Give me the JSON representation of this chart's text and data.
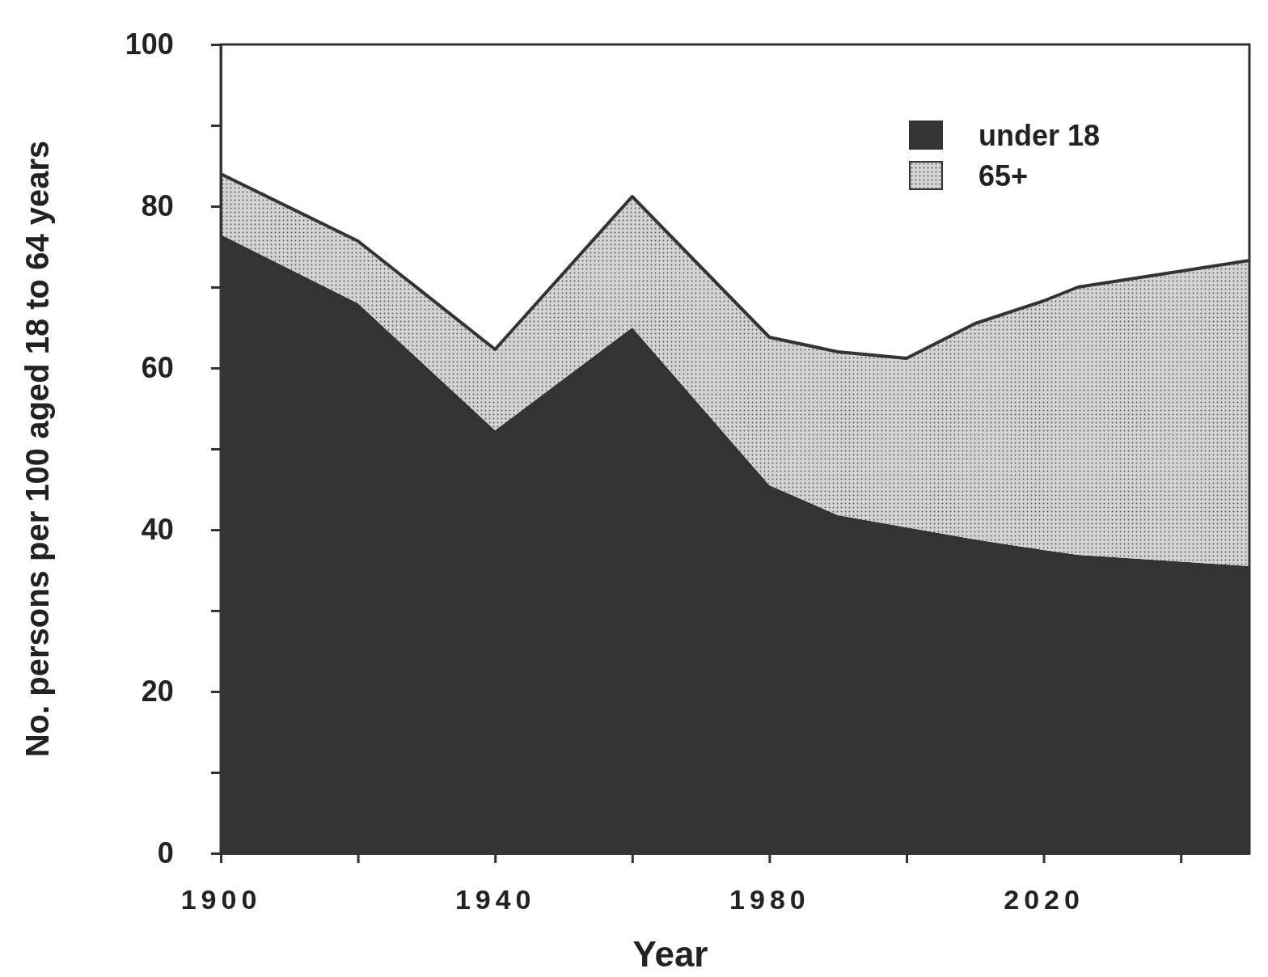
{
  "chart_data": {
    "type": "area",
    "stacked": true,
    "xlabel": "Year",
    "ylabel": "No. persons per 100 aged 18 to 64 years",
    "x": [
      1900,
      1920,
      1940,
      1960,
      1980,
      1990,
      2000,
      2010,
      2020,
      2025,
      2050
    ],
    "series": [
      {
        "name": "under 18",
        "color": "#333333",
        "values": [
          76.5,
          68,
          52.3,
          65,
          45.5,
          41.8,
          40.3,
          38.8,
          37.5,
          36.9,
          35.5
        ]
      },
      {
        "name": "65+",
        "color": "#d4d4d4",
        "values": [
          7.5,
          7.7,
          10,
          16.2,
          18.3,
          20.2,
          20.9,
          26.7,
          30.8,
          33.1,
          37.8
        ]
      }
    ],
    "xlim": [
      1900,
      2050
    ],
    "xticks": [
      1900,
      {
        "value": 1920,
        "label": null
      },
      1940,
      {
        "value": 1960,
        "label": null
      },
      1980,
      {
        "value": 2000,
        "label": null
      },
      2020,
      {
        "value": 2040,
        "label": null
      }
    ],
    "ylim": [
      0,
      100
    ],
    "yticks": [
      0,
      {
        "value": 10,
        "label": null
      },
      20,
      {
        "value": 30,
        "label": null
      },
      40,
      {
        "value": 50,
        "label": null
      },
      60,
      {
        "value": 70,
        "label": null
      },
      80,
      {
        "value": 90,
        "label": null
      },
      100
    ],
    "legend": "top right"
  }
}
